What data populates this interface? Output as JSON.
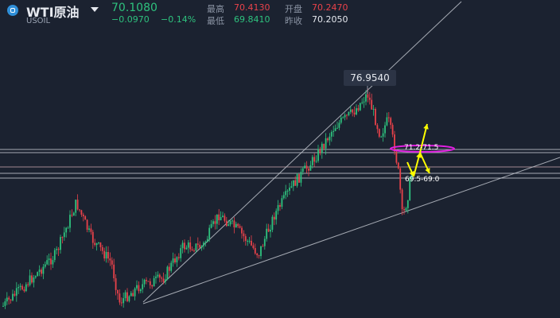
{
  "header": {
    "title": "WTI原油",
    "symbol": "USOIL",
    "price": "70.1080",
    "change": "−0.0970",
    "change_pct": "−0.14%",
    "stats": [
      {
        "label": "最高",
        "value": "70.4130",
        "color": "red"
      },
      {
        "label": "开盘",
        "value": "70.2470",
        "color": "red"
      },
      {
        "label": "最低",
        "value": "69.8410",
        "color": "grn"
      },
      {
        "label": "昨收",
        "value": "70.2050",
        "color": "wht"
      }
    ]
  },
  "annotations": {
    "peak_label": "76.9540",
    "zone_upper": "71.2-71.5",
    "zone_lower": "69.5-69.0"
  },
  "colors": {
    "background": "#1b2230",
    "up": "#2ec27e",
    "down": "#e9424a",
    "arrow": "#ffff00",
    "ellipse": "#e020e0",
    "line": "#c8ccd4"
  },
  "chart_data": {
    "type": "candlestick",
    "series_shape": "rising channel from about 67 to a peak of 76.9540, then a sharp drop toward 69",
    "peak": 76.954,
    "horizontal_levels": [
      71.5,
      71.2,
      69.5,
      69.0
    ],
    "icons": [
      "up-arrow",
      "down-arrow"
    ]
  }
}
